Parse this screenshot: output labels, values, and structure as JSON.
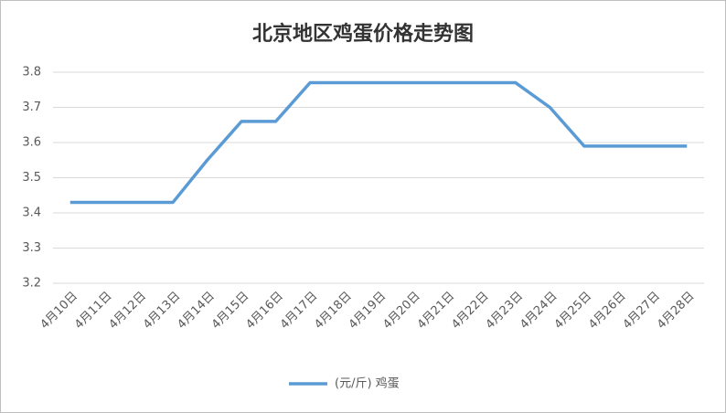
{
  "chart_data": {
    "type": "line",
    "title": "北京地区鸡蛋价格走势图",
    "categories": [
      "4月10日",
      "4月11日",
      "4月12日",
      "4月13日",
      "4月14日",
      "4月15日",
      "4月16日",
      "4月17日",
      "4月18日",
      "4月19日",
      "4月20日",
      "4月21日",
      "4月22日",
      "4月23日",
      "4月24日",
      "4月25日",
      "4月26日",
      "4月27日",
      "4月28日"
    ],
    "series": [
      {
        "name": "(元/斤) 鸡蛋",
        "color": "#5b9bd5",
        "values": [
          3.43,
          3.43,
          3.43,
          3.43,
          3.55,
          3.66,
          3.66,
          3.77,
          3.77,
          3.77,
          3.77,
          3.77,
          3.77,
          3.77,
          3.7,
          3.59,
          3.59,
          3.59,
          3.59
        ]
      }
    ],
    "ylim": [
      3.2,
      3.8
    ],
    "yticks": [
      3.2,
      3.3,
      3.4,
      3.5,
      3.6,
      3.7,
      3.8
    ],
    "grid": true,
    "legend": "bottom"
  }
}
